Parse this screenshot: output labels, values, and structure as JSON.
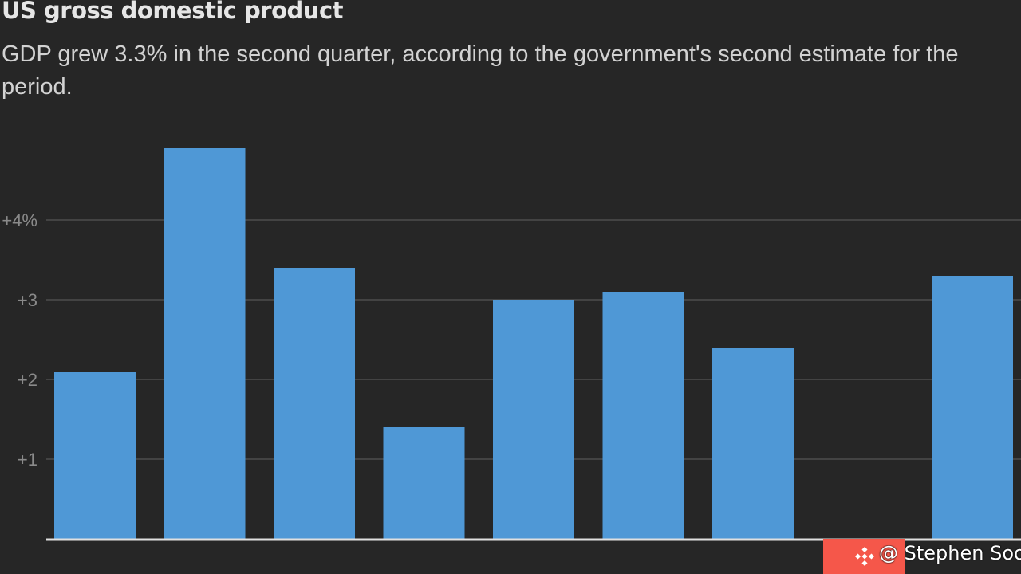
{
  "header": {
    "title": "US gross domestic product",
    "subtitle": "GDP grew 3.3% in the second quarter, according to the government's second estimate for the period."
  },
  "chart_data": {
    "type": "bar",
    "title": "US gross domestic product",
    "subtitle": "GDP grew 3.3% in the second quarter, according to the government's second estimate for the period.",
    "xlabel": "",
    "ylabel": "",
    "unit": "%",
    "ylim": [
      0,
      4.9
    ],
    "yticks": [
      1,
      2,
      3,
      4
    ],
    "ytick_labels": [
      "+1",
      "+2",
      "+3",
      "+4%"
    ],
    "grid": true,
    "categories": [
      "",
      "",
      "",
      "",
      "",
      "",
      "",
      "",
      ""
    ],
    "values": [
      2.1,
      4.9,
      3.4,
      1.4,
      3.0,
      3.1,
      2.4,
      null,
      3.3
    ],
    "bar_color": "#4f98d6",
    "grid_color": "#4d4d4d",
    "axis_color": "#e0e0e0",
    "tick_label_color": "#8a8a8a"
  },
  "watermark": {
    "text": "@ Stephen Soo",
    "icon": "binance-logo-icon",
    "accent": "#f5574a"
  }
}
